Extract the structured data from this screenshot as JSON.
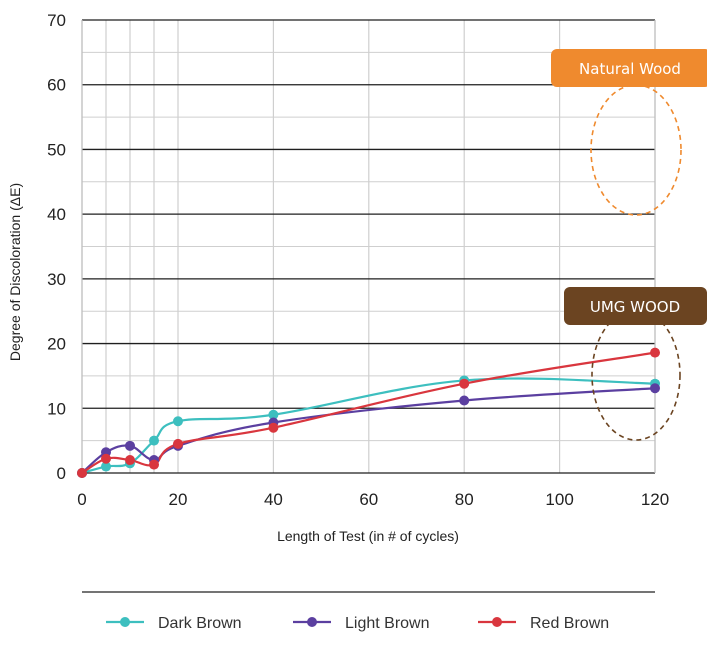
{
  "chart_data": {
    "type": "line",
    "xlabel": "Length of Test (in # of cycles)",
    "ylabel": "Degree of Discoloration (ΔE)",
    "x_ticks": [
      0,
      20,
      40,
      60,
      80,
      100,
      120
    ],
    "y_ticks": [
      0,
      10,
      20,
      30,
      40,
      50,
      60,
      70
    ],
    "xlim": [
      0,
      120
    ],
    "ylim": [
      0,
      70
    ],
    "x_axis_style": "non-linear (0-20 expanded)",
    "grid": true,
    "legend_position": "bottom",
    "series": [
      {
        "name": "Dark Brown",
        "color": "#3dbfbf",
        "x": [
          0,
          5,
          10,
          15,
          20,
          40,
          80,
          120
        ],
        "y": [
          0,
          1,
          1.5,
          5,
          8,
          9,
          14.3,
          13.8
        ]
      },
      {
        "name": "Light Brown",
        "color": "#5b3fa0",
        "x": [
          0,
          5,
          10,
          15,
          20,
          40,
          80,
          120
        ],
        "y": [
          0,
          3.2,
          4.2,
          2,
          4.2,
          7.8,
          11.2,
          13.1
        ]
      },
      {
        "name": "Red Brown",
        "color": "#d9363e",
        "x": [
          0,
          5,
          10,
          15,
          20,
          40,
          80,
          120
        ],
        "y": [
          0,
          2.2,
          2,
          1.3,
          4.5,
          7,
          13.8,
          18.6
        ]
      }
    ],
    "annotations": [
      {
        "label": "Natural Wood",
        "color": "#ef8a2e",
        "ellipse_y_range": [
          40,
          60
        ]
      },
      {
        "label": "UMG WOOD",
        "color": "#6b4421",
        "ellipse_y_range": [
          5,
          20
        ]
      }
    ]
  }
}
